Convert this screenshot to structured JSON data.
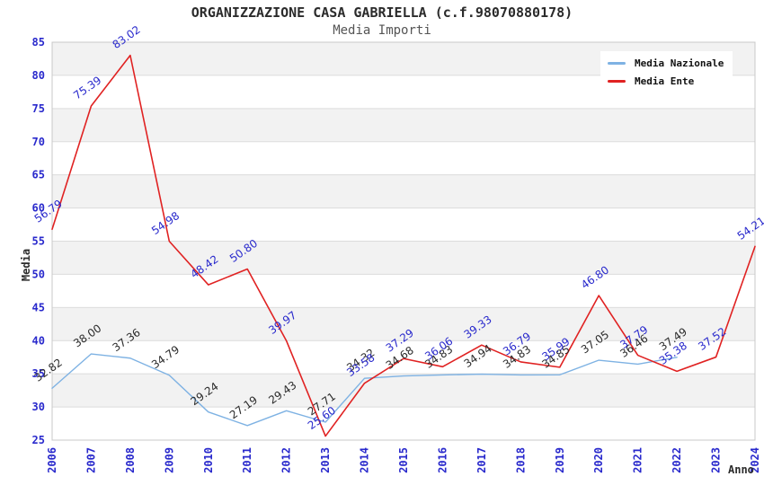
{
  "page": {
    "title": "ORGANIZZAZIONE CASA GABRIELLA (c.f.98070880178)",
    "subtitle": "Media Importi"
  },
  "chart_data": {
    "type": "line",
    "title": "ORGANIZZAZIONE CASA GABRIELLA (c.f.98070880178)",
    "subtitle": "Media Importi",
    "xlabel": "Anno",
    "ylabel": "Media",
    "categories": [
      "2006",
      "2007",
      "2008",
      "2009",
      "2010",
      "2011",
      "2012",
      "2013",
      "2014",
      "2015",
      "2016",
      "2017",
      "2018",
      "2019",
      "2020",
      "2021",
      "2022",
      "2023",
      "2024"
    ],
    "series": [
      {
        "name": "Media Nazionale",
        "color": "#7EB2E3",
        "label_color": "#2B2B2B",
        "values": [
          32.82,
          38.0,
          37.36,
          34.79,
          29.24,
          27.19,
          29.43,
          27.71,
          34.32,
          34.68,
          34.83,
          34.94,
          34.83,
          34.85,
          37.05,
          36.46,
          37.49,
          null,
          null
        ]
      },
      {
        "name": "Media Ente",
        "color": "#E02222",
        "label_color": "#2929CC",
        "values": [
          56.79,
          75.39,
          83.02,
          54.98,
          48.42,
          50.8,
          39.97,
          25.6,
          33.58,
          37.29,
          36.06,
          39.33,
          36.79,
          35.99,
          46.8,
          37.79,
          35.38,
          37.52,
          54.21
        ]
      }
    ],
    "ylim": [
      25,
      85
    ],
    "ytick_step": 5,
    "grid": "horizontal-bands-and-lines",
    "legend_position": "top-right",
    "colors": {
      "axis_tick": "#2929CC",
      "band_gray": "#F2F2F2",
      "band_white": "#FFFFFF",
      "gridline": "#DCDCDC",
      "frame": "#C8C8C8"
    }
  }
}
